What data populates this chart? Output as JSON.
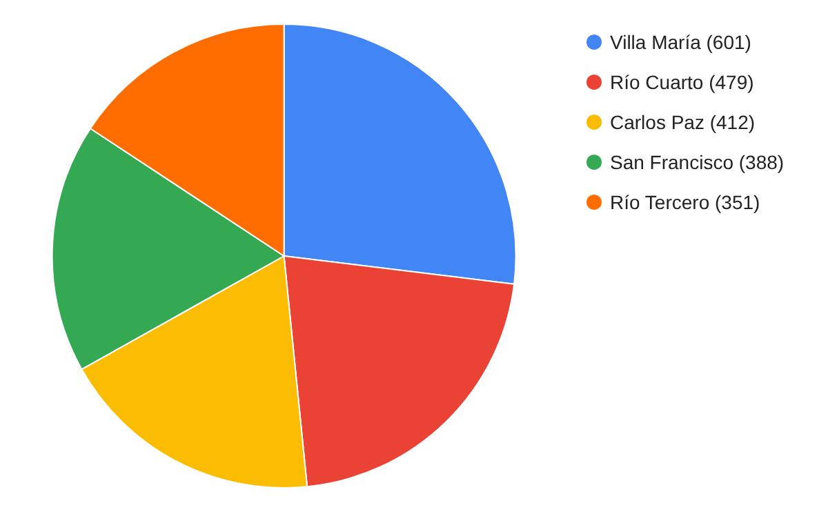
{
  "chart_data": {
    "type": "pie",
    "categories": [
      "Villa María (601)",
      "Río Cuarto (479)",
      "Carlos Paz (412)",
      "San Francisco (388)",
      "Río Tercero (351)"
    ],
    "values": [
      601,
      479,
      412,
      388,
      351
    ],
    "colors": [
      "#4285f4",
      "#ea4335",
      "#fbbc04",
      "#34a853",
      "#ff6d01"
    ],
    "legend": "right"
  }
}
